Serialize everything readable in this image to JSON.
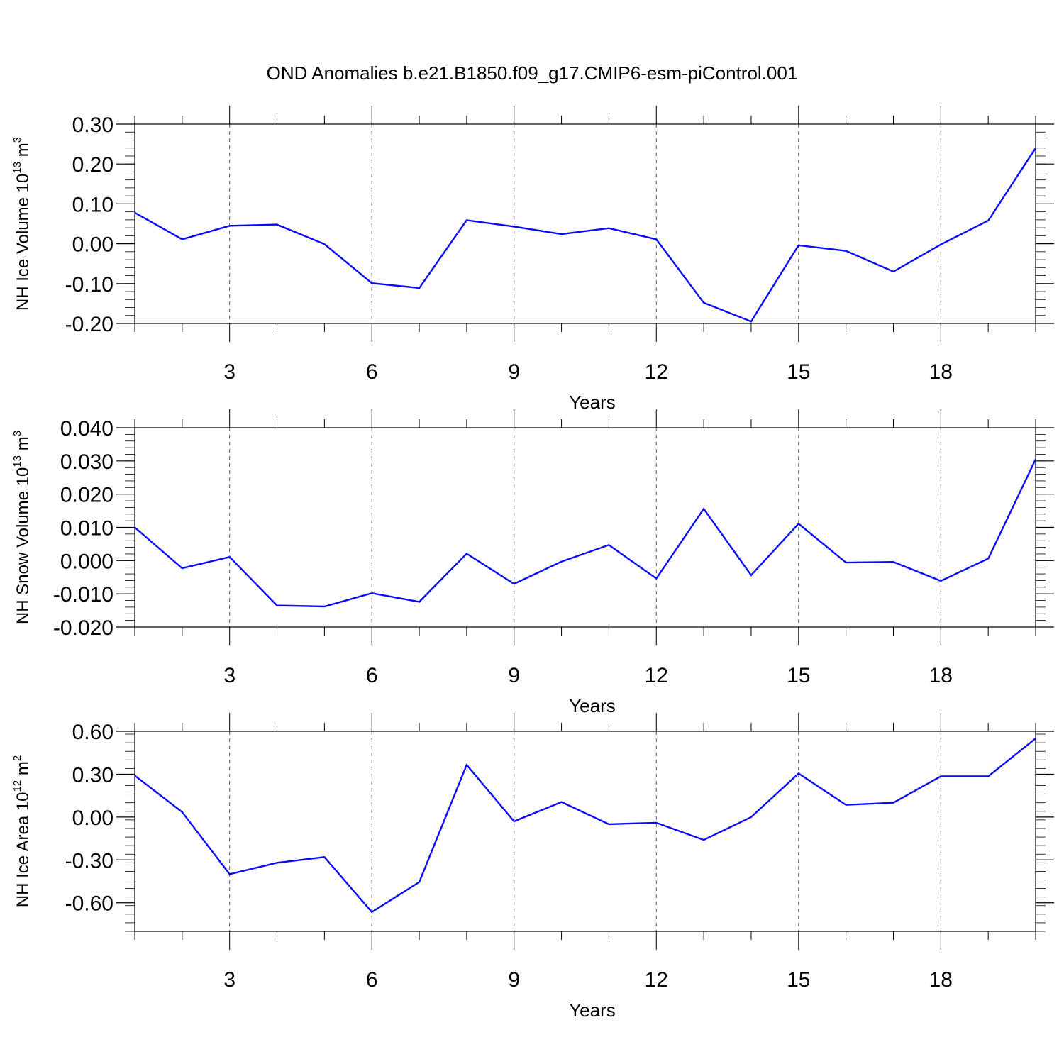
{
  "chart_data": {
    "title": "OND Anomalies b.e21.B1850.f09_g17.CMIP6-esm-piControl.001",
    "panels": [
      {
        "type": "line",
        "ylabel": {
          "main": "NH Ice Volume 10",
          "exp": "13",
          "unit": " m",
          "unit_exp": "3"
        },
        "xlabel": "Years",
        "xlim": [
          1,
          20
        ],
        "ylim": [
          -0.2,
          0.3
        ],
        "yticks": [
          -0.2,
          -0.1,
          0.0,
          0.1,
          0.2,
          0.3
        ],
        "ytick_labels": [
          "-0.20",
          "-0.10",
          "0.00",
          "0.10",
          "0.20",
          "0.30"
        ],
        "yminor_step": 0.02,
        "xticks": [
          3,
          6,
          9,
          12,
          15,
          18
        ],
        "xtick_labels": [
          "3",
          "6",
          "9",
          "12",
          "15",
          "18"
        ],
        "x": [
          1,
          2,
          3,
          4,
          5,
          6,
          7,
          8,
          9,
          10,
          11,
          12,
          13,
          14,
          15,
          16,
          17,
          18,
          19,
          20
        ],
        "values": [
          0.078,
          0.011,
          0.045,
          0.048,
          -0.001,
          -0.099,
          -0.111,
          0.059,
          0.043,
          0.024,
          0.039,
          0.011,
          -0.148,
          -0.195,
          -0.004,
          -0.018,
          -0.07,
          -0.002,
          0.058,
          0.24
        ],
        "color": "#0a0aff"
      },
      {
        "type": "line",
        "ylabel": {
          "main": "NH Snow Volume 10",
          "exp": "13",
          "unit": " m",
          "unit_exp": "3"
        },
        "xlabel": "Years",
        "xlim": [
          1,
          20
        ],
        "ylim": [
          -0.02,
          0.04
        ],
        "yticks": [
          -0.02,
          -0.01,
          0.0,
          0.01,
          0.02,
          0.03,
          0.04
        ],
        "ytick_labels": [
          "-0.020",
          "-0.010",
          "0.000",
          "0.010",
          "0.020",
          "0.030",
          "0.040"
        ],
        "yminor_step": 0.002,
        "xticks": [
          3,
          6,
          9,
          12,
          15,
          18
        ],
        "xtick_labels": [
          "3",
          "6",
          "9",
          "12",
          "15",
          "18"
        ],
        "x": [
          1,
          2,
          3,
          4,
          5,
          6,
          7,
          8,
          9,
          10,
          11,
          12,
          13,
          14,
          15,
          16,
          17,
          18,
          19,
          20
        ],
        "values": [
          0.01,
          -0.0023,
          0.0011,
          -0.0135,
          -0.0138,
          -0.0098,
          -0.0124,
          0.0021,
          -0.007,
          -0.0003,
          0.0047,
          -0.0054,
          0.0156,
          -0.0044,
          0.0111,
          -0.0006,
          -0.0004,
          -0.0061,
          0.0006,
          0.0305
        ],
        "color": "#0a0aff"
      },
      {
        "type": "line",
        "ylabel": {
          "main": "NH Ice Area 10",
          "exp": "12",
          "unit": " m",
          "unit_exp": "2"
        },
        "xlabel": "Years",
        "xlim": [
          1,
          20
        ],
        "ylim": [
          -0.8,
          0.6
        ],
        "yticks": [
          -0.6,
          -0.3,
          0.0,
          0.3,
          0.6
        ],
        "ytick_labels": [
          "-0.60",
          "-0.30",
          "0.00",
          "0.30",
          "0.60"
        ],
        "yminor_step": 0.06,
        "xticks": [
          3,
          6,
          9,
          12,
          15,
          18
        ],
        "xtick_labels": [
          "3",
          "6",
          "9",
          "12",
          "15",
          "18"
        ],
        "x": [
          1,
          2,
          3,
          4,
          5,
          6,
          7,
          8,
          9,
          10,
          11,
          12,
          13,
          14,
          15,
          16,
          17,
          18,
          19,
          20
        ],
        "values": [
          0.29,
          0.035,
          -0.4,
          -0.32,
          -0.28,
          -0.665,
          -0.455,
          0.365,
          -0.03,
          0.105,
          -0.05,
          -0.04,
          -0.16,
          0.0,
          0.305,
          0.085,
          0.1,
          0.285,
          0.285,
          0.55
        ],
        "color": "#0a0aff"
      }
    ]
  }
}
